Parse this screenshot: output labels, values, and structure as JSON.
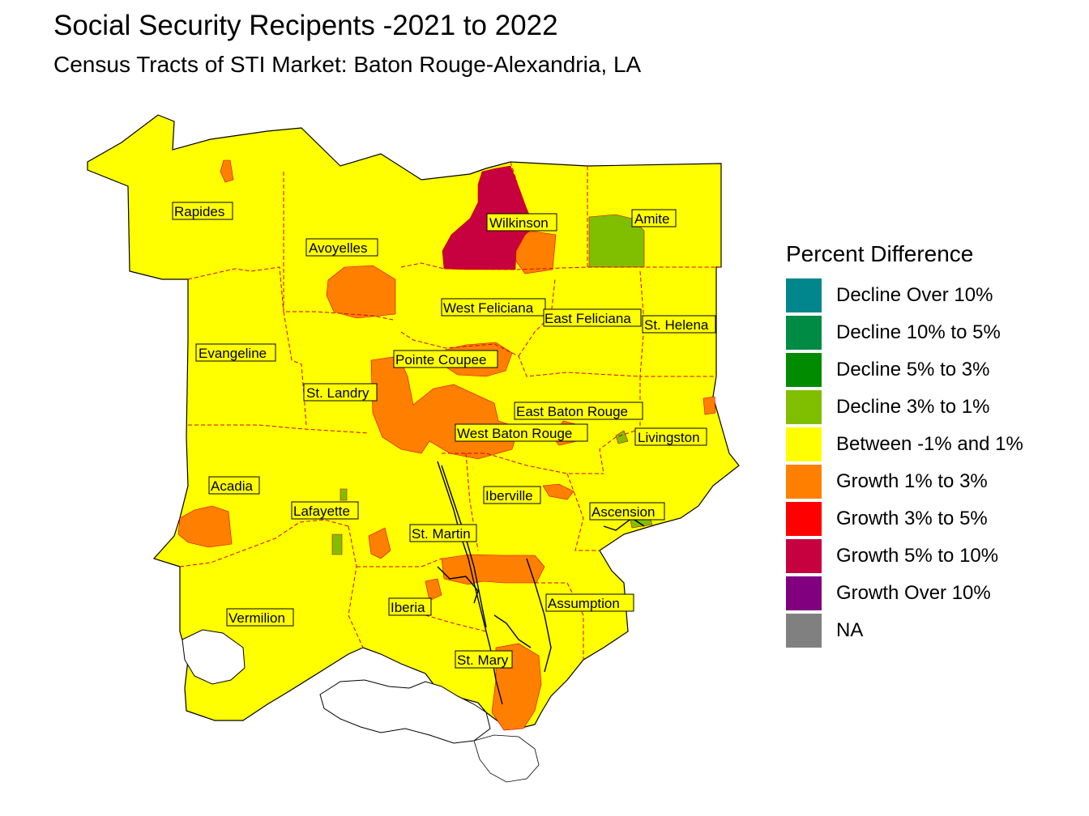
{
  "title": "Social Security Recipents -2021 to 2022",
  "subtitle": "Census Tracts of STI Market: Baton Rouge-Alexandria, LA",
  "legend": {
    "title": "Percent Difference",
    "items": [
      {
        "label": "Decline Over 10%",
        "color": "#00868b"
      },
      {
        "label": "Decline 10% to 5%",
        "color": "#008b45"
      },
      {
        "label": "Decline 5% to 3%",
        "color": "#008b00"
      },
      {
        "label": "Decline 3% to 1%",
        "color": "#7fbf00"
      },
      {
        "label": "Between -1% and 1%",
        "color": "#ffff00"
      },
      {
        "label": "Growth 1% to 3%",
        "color": "#ff7f00"
      },
      {
        "label": "Growth 3% to 5%",
        "color": "#ff0000"
      },
      {
        "label": "Growth 5% to 10%",
        "color": "#c7003f"
      },
      {
        "label": "Growth Over 10%",
        "color": "#800080"
      },
      {
        "label": "NA",
        "color": "#808080"
      }
    ]
  },
  "parishes": [
    {
      "name": "Rapides",
      "category": "Between -1% and 1%"
    },
    {
      "name": "Avoyelles",
      "category": "Between -1% and 1%"
    },
    {
      "name": "Wilkinson",
      "category": "Growth 5% to 10%"
    },
    {
      "name": "Amite",
      "category": "Decline 3% to 1%"
    },
    {
      "name": "West Feliciana",
      "category": "Between -1% and 1%"
    },
    {
      "name": "East Feliciana",
      "category": "Between -1% and 1%"
    },
    {
      "name": "St. Helena",
      "category": "Between -1% and 1%"
    },
    {
      "name": "Evangeline",
      "category": "Between -1% and 1%"
    },
    {
      "name": "Pointe Coupee",
      "category": "Growth 1% to 3%"
    },
    {
      "name": "St. Landry",
      "category": "Between -1% and 1%"
    },
    {
      "name": "East Baton Rouge",
      "category": "Between -1% and 1%"
    },
    {
      "name": "West Baton Rouge",
      "category": "Growth 1% to 3%"
    },
    {
      "name": "Livingston",
      "category": "Between -1% and 1%"
    },
    {
      "name": "Acadia",
      "category": "Between -1% and 1%"
    },
    {
      "name": "Iberville",
      "category": "Between -1% and 1%"
    },
    {
      "name": "Lafayette",
      "category": "Between -1% and 1%"
    },
    {
      "name": "Ascension",
      "category": "Between -1% and 1%"
    },
    {
      "name": "St. Martin",
      "category": "Growth 1% to 3%"
    },
    {
      "name": "Vermilion",
      "category": "Between -1% and 1%"
    },
    {
      "name": "Iberia",
      "category": "Between -1% and 1%"
    },
    {
      "name": "Assumption",
      "category": "Between -1% and 1%"
    },
    {
      "name": "St. Mary",
      "category": "Growth 1% to 3%"
    }
  ]
}
